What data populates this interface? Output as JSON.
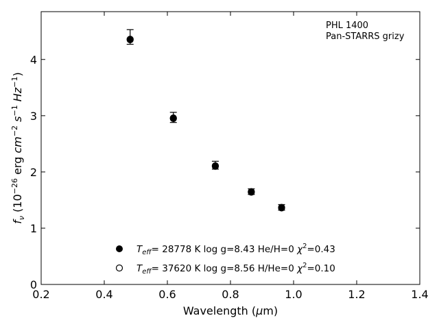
{
  "chart_data": {
    "type": "scatter",
    "xlabel": "Wavelength (μm)",
    "ylabel": "f_ν (10^-26 erg cm^-2 s^-1 Hz^-1)",
    "xlim": [
      0.2,
      1.4
    ],
    "ylim": [
      0,
      4.85
    ],
    "x_ticks": [
      0.2,
      0.4,
      0.6,
      0.8,
      1.0,
      1.2,
      1.4
    ],
    "x_tick_labels": [
      "0.2",
      "0.4",
      "0.6",
      "0.8",
      "1.0",
      "1.2",
      "1.4"
    ],
    "y_ticks": [
      0,
      1,
      2,
      3,
      4
    ],
    "y_tick_labels": [
      "0",
      "1",
      "2",
      "3",
      "4"
    ],
    "grid": false,
    "annotations": [
      "PHL 1400",
      "Pan-STARRS grizy"
    ],
    "observed": {
      "x": [
        0.482,
        0.619,
        0.752,
        0.866,
        0.962
      ],
      "y": [
        4.4,
        2.97,
        2.12,
        1.65,
        1.37
      ],
      "err": [
        0.13,
        0.09,
        0.07,
        0.05,
        0.05
      ]
    },
    "series": [
      {
        "marker": "filled",
        "x": [
          0.482,
          0.619,
          0.752,
          0.866,
          0.962
        ],
        "values": [
          4.35,
          2.95,
          2.1,
          1.64,
          1.36
        ],
        "legend_text": {
          "teff": "= 28778 K",
          "rest": "log g=8.43  He/H=0",
          "chi": "=0.43"
        }
      },
      {
        "marker": "open",
        "x": [
          0.482,
          0.619,
          0.752,
          0.866,
          0.962
        ],
        "values": [
          4.36,
          2.96,
          2.11,
          1.65,
          1.37
        ],
        "legend_text": {
          "teff": "= 37620 K",
          "rest": "log g=8.56  H/He=0",
          "chi": "=0.10"
        }
      }
    ]
  }
}
